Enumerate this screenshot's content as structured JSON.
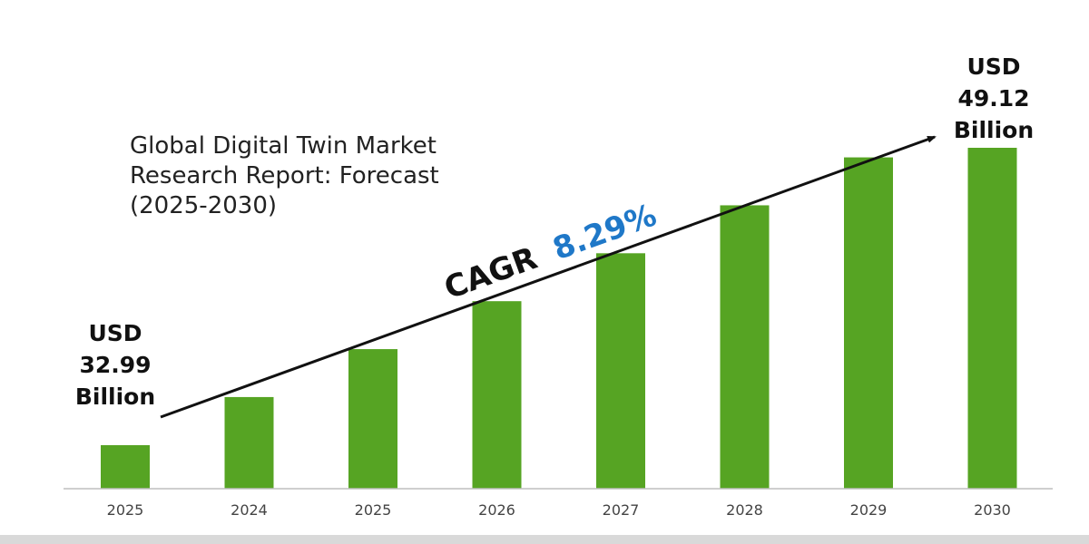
{
  "chart_data": {
    "type": "bar",
    "title_lines": [
      "Global Digital Twin Market",
      "Research Report: Forecast",
      "(2025-2030)"
    ],
    "categories": [
      "2025",
      "2024",
      "2025",
      "2026",
      "2027",
      "2028",
      "2029",
      "2030"
    ],
    "values": [
      32.99,
      35.6,
      38.2,
      40.8,
      43.4,
      46.0,
      48.6,
      49.12
    ],
    "unit": "USD Billion",
    "bar_color": "#56a423",
    "ylim": [
      30,
      52
    ],
    "xlabel": "",
    "ylabel": "",
    "grid": false,
    "legend": "none",
    "annotations": {
      "start_value": [
        "USD",
        "32.99",
        "Billion"
      ],
      "end_value": [
        "USD",
        "49.12",
        "Billion"
      ],
      "cagr_label": "CAGR",
      "cagr_value": "8.29%",
      "cagr_color": "#1f78c8",
      "trend_arrow": true
    }
  }
}
